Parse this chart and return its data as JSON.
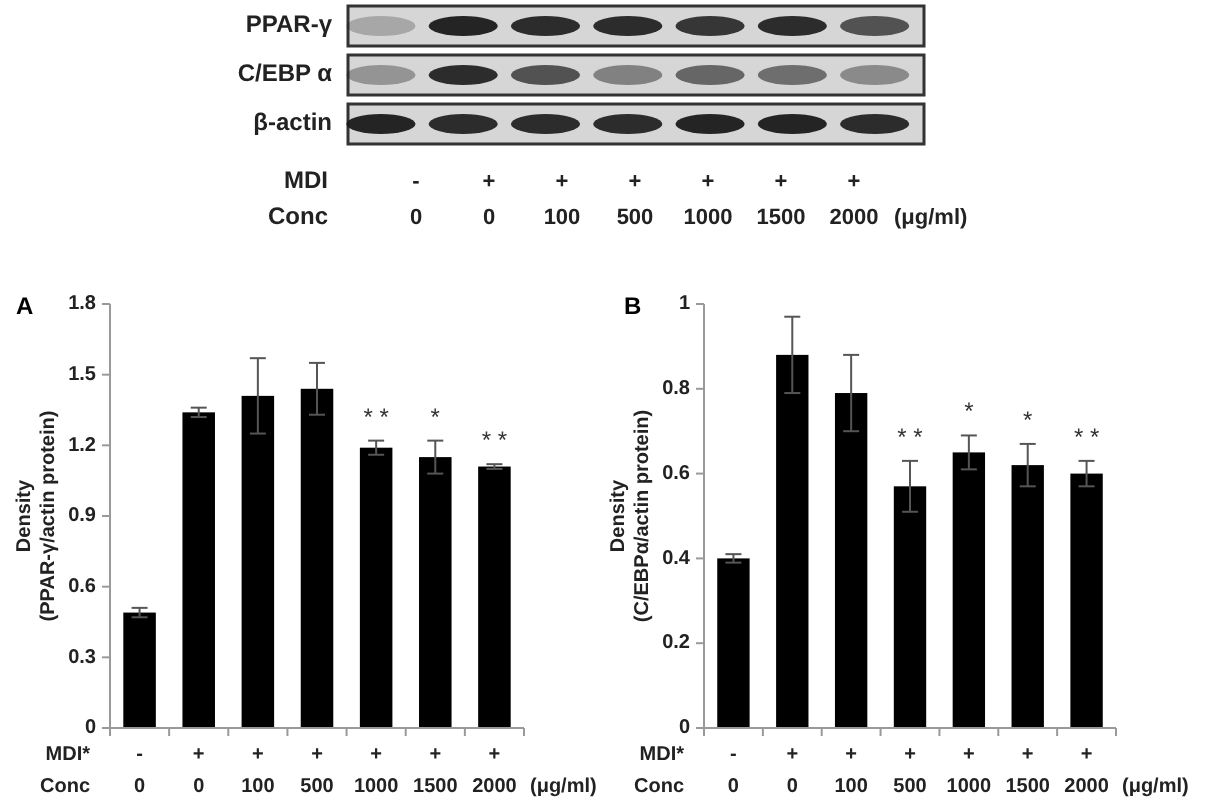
{
  "chart_data": [
    {
      "type": "other",
      "y_categories": [
        "PPAR-γ",
        "C/EBP α",
        "β-actin"
      ],
      "categories": [
        "-\n0",
        "+\n0",
        "+\n100",
        "+\n500",
        "+\n1000",
        "+\n1500",
        "+\n2000"
      ],
      "xlabel": "MDI\nConc",
      "annotations": [
        "(μg/ml)"
      ]
    },
    {
      "type": "bar",
      "title": "A",
      "ylabel": "Density\n(PPAR-γ/actin protein)",
      "xlabel": "MDI*\nConc",
      "categories": [
        "-\n0",
        "+\n0",
        "+\n100",
        "+\n500",
        "+\n1000",
        "+\n1500",
        "+\n2000"
      ],
      "values": [
        0.49,
        1.34,
        1.41,
        1.44,
        1.19,
        1.15,
        1.11
      ],
      "errors": [
        0.02,
        0.02,
        0.16,
        0.11,
        0.03,
        0.07,
        0.01
      ],
      "value_labels": [
        null,
        null,
        null,
        null,
        "* *",
        "*",
        "* *"
      ],
      "color": "#000000",
      "ylim": [
        0,
        1.8
      ],
      "yticks": [
        0,
        0.3,
        0.6,
        0.9,
        1.2,
        1.5,
        1.8
      ],
      "annotations": [
        "(μg/ml)"
      ]
    },
    {
      "type": "bar",
      "title": "B",
      "ylabel": "Density\n(C/EBPα/actin protein)",
      "xlabel": "MDI*\nConc",
      "categories": [
        "-\n0",
        "+\n0",
        "+\n100",
        "+\n500",
        "+\n1000",
        "+\n1500",
        "+\n2000"
      ],
      "values": [
        0.4,
        0.88,
        0.79,
        0.57,
        0.65,
        0.62,
        0.6
      ],
      "errors": [
        0.01,
        0.09,
        0.09,
        0.06,
        0.04,
        0.05,
        0.03
      ],
      "value_labels": [
        null,
        null,
        null,
        "* *",
        "*",
        "*",
        "* *"
      ],
      "color": "#000000",
      "ylim": [
        0,
        1
      ],
      "yticks": [
        0,
        0.2,
        0.4,
        0.6,
        0.8,
        1
      ],
      "annotations": [
        "(μg/ml)"
      ]
    }
  ]
}
